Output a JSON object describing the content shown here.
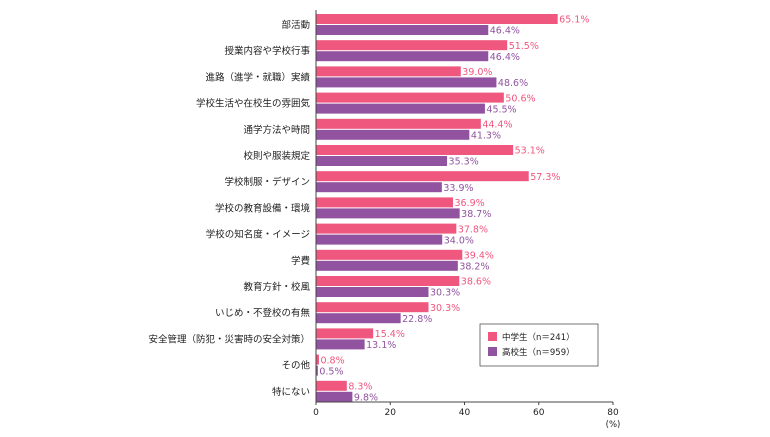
{
  "chart_data": {
    "type": "bar",
    "orientation": "horizontal",
    "categories": [
      "部活動",
      "授業内容や学校行事",
      "進路（進学・就職）実績",
      "学校生活や在校生の雰囲気",
      "通学方法や時間",
      "校則や服装規定",
      "学校制服・デザイン",
      "学校の教育設備・環境",
      "学校の知名度・イメージ",
      "学費",
      "教育方針・校風",
      "いじめ・不登校の有無",
      "安全管理（防犯・災害時の安全対策）",
      "その他",
      "特にない"
    ],
    "series": [
      {
        "name": "中学生（n＝241）",
        "color": "#f0577f",
        "values": [
          65.1,
          51.5,
          39.0,
          50.6,
          44.4,
          53.1,
          57.3,
          36.9,
          37.8,
          39.4,
          38.6,
          30.3,
          15.4,
          0.8,
          8.3
        ],
        "labels": [
          "65.1%",
          "51.5%",
          "39.0%",
          "50.6%",
          "44.4%",
          "53.1%",
          "57.3%",
          "36.9%",
          "37.8%",
          "39.4%",
          "38.6%",
          "30.3%",
          "15.4%",
          "0.8%",
          "8.3%"
        ]
      },
      {
        "name": "高校生（n＝959）",
        "color": "#91539f",
        "values": [
          46.4,
          46.4,
          48.6,
          45.5,
          41.3,
          35.3,
          33.9,
          38.7,
          34.0,
          38.2,
          30.3,
          22.8,
          13.1,
          0.5,
          9.8
        ],
        "labels": [
          "46.4%",
          "46.4%",
          "48.6%",
          "45.5%",
          "41.3%",
          "35.3%",
          "33.9%",
          "38.7%",
          "34.0%",
          "38.2%",
          "30.3%",
          "22.8%",
          "13.1%",
          "0.5%",
          "9.8%"
        ]
      }
    ],
    "xlim": [
      0,
      80
    ],
    "xticks": [
      "0",
      "20",
      "40",
      "60",
      "80"
    ],
    "unit_label": "(%)",
    "grid": false,
    "legend_position": "lower-right"
  }
}
